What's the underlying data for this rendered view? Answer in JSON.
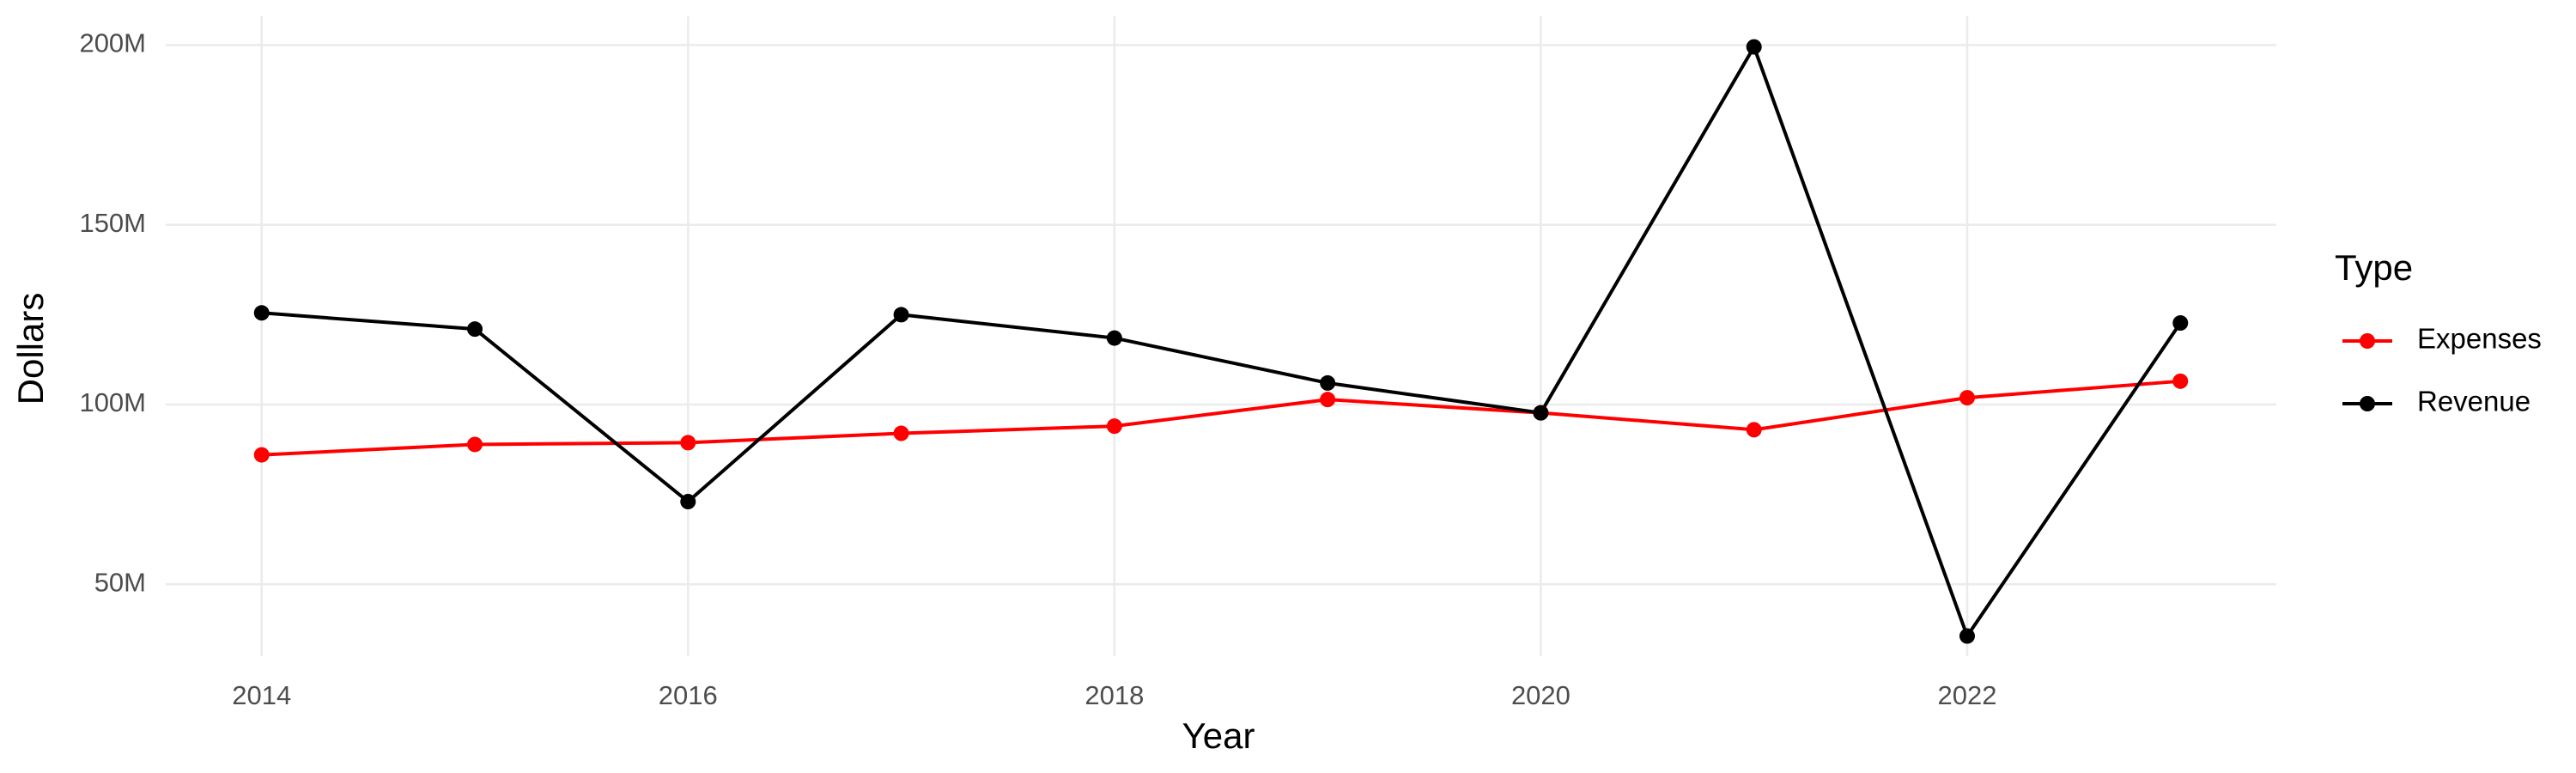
{
  "chart_data": {
    "type": "line",
    "x_label": "Year",
    "y_label": "Dollars",
    "x": [
      2014,
      2015,
      2016,
      2017,
      2018,
      2019,
      2020,
      2021,
      2022,
      2023
    ],
    "series": [
      {
        "name": "Expenses",
        "color": "#ff0000",
        "values": [
          86000000,
          88900000,
          89400000,
          92000000,
          94000000,
          101400000,
          97700000,
          93000000,
          101900000,
          106500000
        ]
      },
      {
        "name": "Revenue",
        "color": "#000000",
        "values": [
          125500000,
          121000000,
          73000000,
          125000000,
          118500000,
          106000000,
          97700000,
          199500000,
          35600000,
          122700000
        ]
      }
    ],
    "xlim": [
      2013.55,
      2023.45
    ],
    "xticks": [
      2014,
      2016,
      2018,
      2020,
      2022
    ],
    "ylim": [
      30000000,
      208000000
    ],
    "yticks": [
      {
        "value": 50000000,
        "label": "50M"
      },
      {
        "value": 100000000,
        "label": "100M"
      },
      {
        "value": 150000000,
        "label": "150M"
      },
      {
        "value": 200000000,
        "label": "200M"
      }
    ],
    "grid": true,
    "legend_title": "Type",
    "legend_position": "right"
  }
}
